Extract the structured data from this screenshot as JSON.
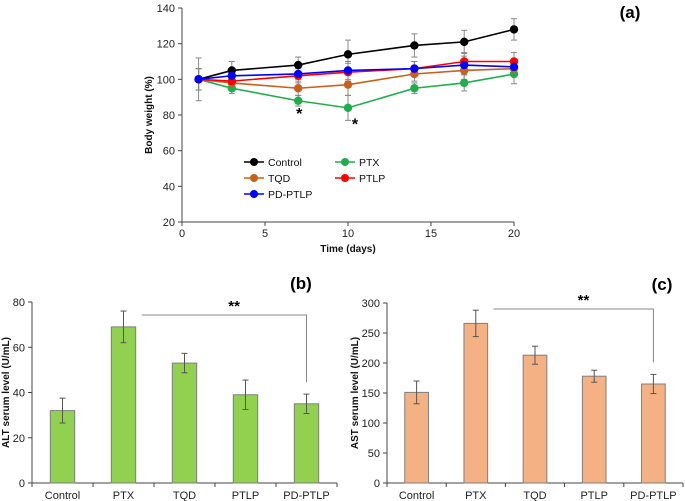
{
  "chart_data": [
    {
      "panel": "(a)",
      "type": "line",
      "xlabel": "Time (days)",
      "ylabel": "Body weight (%)",
      "xlim": [
        0,
        20
      ],
      "ylim": [
        20,
        140
      ],
      "xticks": [
        0,
        5,
        10,
        15,
        20
      ],
      "yticks": [
        20,
        40,
        60,
        80,
        100,
        120,
        140
      ],
      "grid": false,
      "legend": "center-left",
      "x": [
        1,
        3,
        7,
        10,
        14,
        17,
        20
      ],
      "series": [
        {
          "name": "Control",
          "color": "#000000",
          "values": [
            100,
            105,
            108,
            114,
            119,
            121,
            128
          ],
          "errors": [
            12,
            5,
            4.5,
            8,
            6.5,
            6.5,
            6
          ]
        },
        {
          "name": "PTX",
          "color": "#1fae4b",
          "values": [
            100,
            95,
            88,
            84,
            95,
            98,
            103
          ],
          "errors": [
            6,
            3,
            3,
            7,
            3,
            4.5,
            5.5
          ]
        },
        {
          "name": "TQD",
          "color": "#c8601a",
          "values": [
            100,
            98,
            95,
            97,
            103,
            105,
            106
          ],
          "errors": [
            6,
            4,
            4,
            6,
            4,
            5,
            4
          ]
        },
        {
          "name": "PTLP",
          "color": "#ff0000",
          "values": [
            100,
            99,
            102,
            104,
            106,
            110,
            110
          ],
          "errors": [
            6,
            3,
            4,
            5,
            4,
            5,
            5
          ]
        },
        {
          "name": "PD-PTLP",
          "color": "#0000ff",
          "values": [
            100,
            102,
            103,
            105,
            106,
            108,
            107
          ],
          "errors": [
            6,
            3,
            3,
            5,
            4,
            5,
            4
          ]
        }
      ],
      "annotations": [
        {
          "text": "*",
          "x": 7
        },
        {
          "text": "*",
          "x": 10
        }
      ]
    },
    {
      "panel": "(b)",
      "type": "bar",
      "ylabel": "ALT serum level (U/mL)",
      "ylim": [
        0,
        80
      ],
      "yticks": [
        0,
        20,
        40,
        60,
        80
      ],
      "color": "#92d050",
      "categories": [
        "Control",
        "PTX",
        "TQD",
        "PTLP",
        "PD-PTLP"
      ],
      "values": [
        32,
        69,
        53,
        39,
        35
      ],
      "errors": [
        5.5,
        7,
        4.3,
        6.5,
        4.3
      ],
      "annotation": {
        "text": "**",
        "from": "PTX",
        "to": "PD-PTLP"
      }
    },
    {
      "panel": "(c)",
      "type": "bar",
      "ylabel": "AST serum level (U/mL)",
      "ylim": [
        0,
        300
      ],
      "yticks": [
        0,
        50,
        100,
        150,
        200,
        250,
        300
      ],
      "color": "#f4b183",
      "categories": [
        "Control",
        "PTX",
        "TQD",
        "PTLP",
        "PD-PTLP"
      ],
      "values": [
        151,
        266,
        213,
        178,
        165
      ],
      "errors": [
        19,
        22,
        15,
        10,
        16
      ],
      "annotation": {
        "text": "**",
        "from": "PTX",
        "to": "PD-PTLP"
      }
    }
  ]
}
